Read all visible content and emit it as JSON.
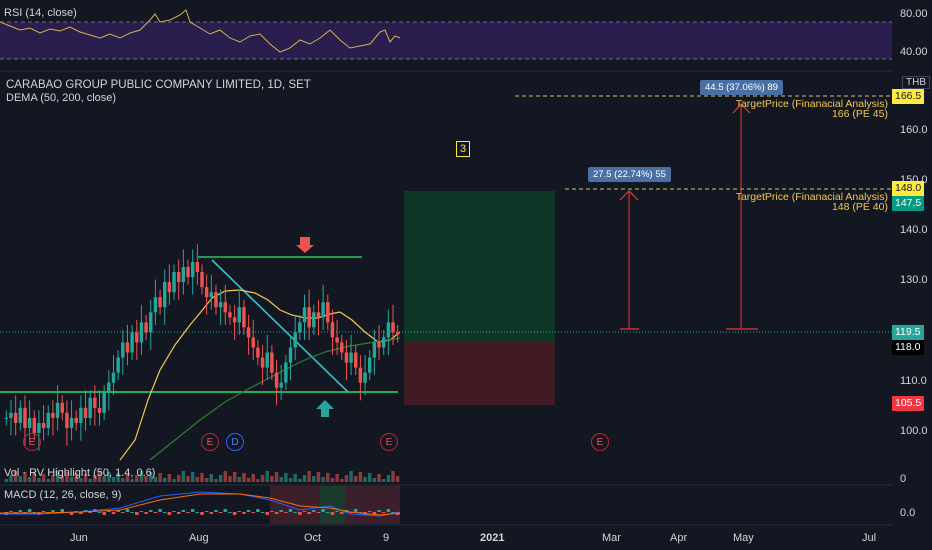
{
  "header": {
    "title": "CARABAO GROUP PUBLIC COMPANY LIMITED, 1D, SET",
    "dema_label": "DEMA (50, 200, close)",
    "currency": "THB"
  },
  "rsi": {
    "label": "RSI (14, close)",
    "upper": "80.00",
    "lower": "40.00"
  },
  "volume": {
    "label": "Vol · RV Highlight (50, 1.4, 0.6)",
    "axis_label": "0"
  },
  "macd": {
    "label": "MACD (12, 26, close, 9)",
    "axis_label": "0.0"
  },
  "annotations": {
    "wave_number": "3",
    "target1_box": "27.5 (22.74%) 55",
    "target2_box": "44.5 (37.06%) 89",
    "target1_text1": "TargetPrice (Finanacial Analysis)",
    "target1_text2": "148 (PE 40)",
    "target2_text1": "TargetPrice (Finanacial Analysis)",
    "target2_text2": "166 (PE 45)"
  },
  "events": [
    "E",
    "E",
    "D",
    "E",
    "E"
  ],
  "price_tags": [
    {
      "text": "166.5",
      "bg": "#ffeb3b",
      "fg": "#131722"
    },
    {
      "text": "148.0",
      "bg": "#ffeb3b",
      "fg": "#131722"
    },
    {
      "text": "147.5",
      "bg": "#089981",
      "fg": "#ffffff"
    },
    {
      "text": "119.5",
      "bg": "#26a69a",
      "fg": "#ffffff"
    },
    {
      "text": "118.0",
      "bg": "#000000",
      "fg": "#ffffff"
    },
    {
      "text": "105.5",
      "bg": "#f23645",
      "fg": "#ffffff"
    }
  ],
  "colors": {
    "up": "#26a69a",
    "down": "#ef5350",
    "background": "#131722",
    "rsi_band": "#2a1e4e",
    "trend_green": "#22c55e",
    "trend_teal": "#31c4cc",
    "dema_yellow": "#f2c94c",
    "dema_green": "#2e7d32",
    "target_red": "#e53935"
  },
  "chart_data": {
    "type": "candlestick",
    "title": "CARABAO GROUP PUBLIC COMPANY LIMITED, 1D, SET",
    "y_axis_ticks": [
      "160.0",
      "150.0",
      "140.0",
      "130.0",
      "110.0",
      "100.0"
    ],
    "x_axis_ticks": [
      "Jun",
      "Aug",
      "Oct",
      "9",
      "2021",
      "Mar",
      "Apr",
      "May",
      "Jul"
    ],
    "close_series": [
      103,
      104,
      102,
      105,
      101,
      103,
      100,
      102,
      101,
      104,
      103,
      106,
      104,
      101,
      103,
      102,
      105,
      103,
      107,
      105,
      104,
      108,
      110,
      112,
      115,
      118,
      116,
      120,
      118,
      122,
      120,
      124,
      127,
      125,
      130,
      128,
      132,
      130,
      133,
      131,
      134,
      132,
      129,
      127,
      128,
      125,
      126,
      124,
      123,
      122,
      125,
      121,
      119,
      117,
      115,
      113,
      116,
      112,
      109,
      110,
      114,
      117,
      120,
      122,
      125,
      121,
      124,
      123,
      126,
      122,
      119,
      118,
      116,
      114,
      116,
      113,
      110,
      112,
      115,
      118,
      117,
      119,
      122,
      120,
      119.5
    ],
    "support": 107.5,
    "resistance": 134.5,
    "current_price": 119.5,
    "targets": [
      148,
      166
    ],
    "stop": 105.5
  }
}
